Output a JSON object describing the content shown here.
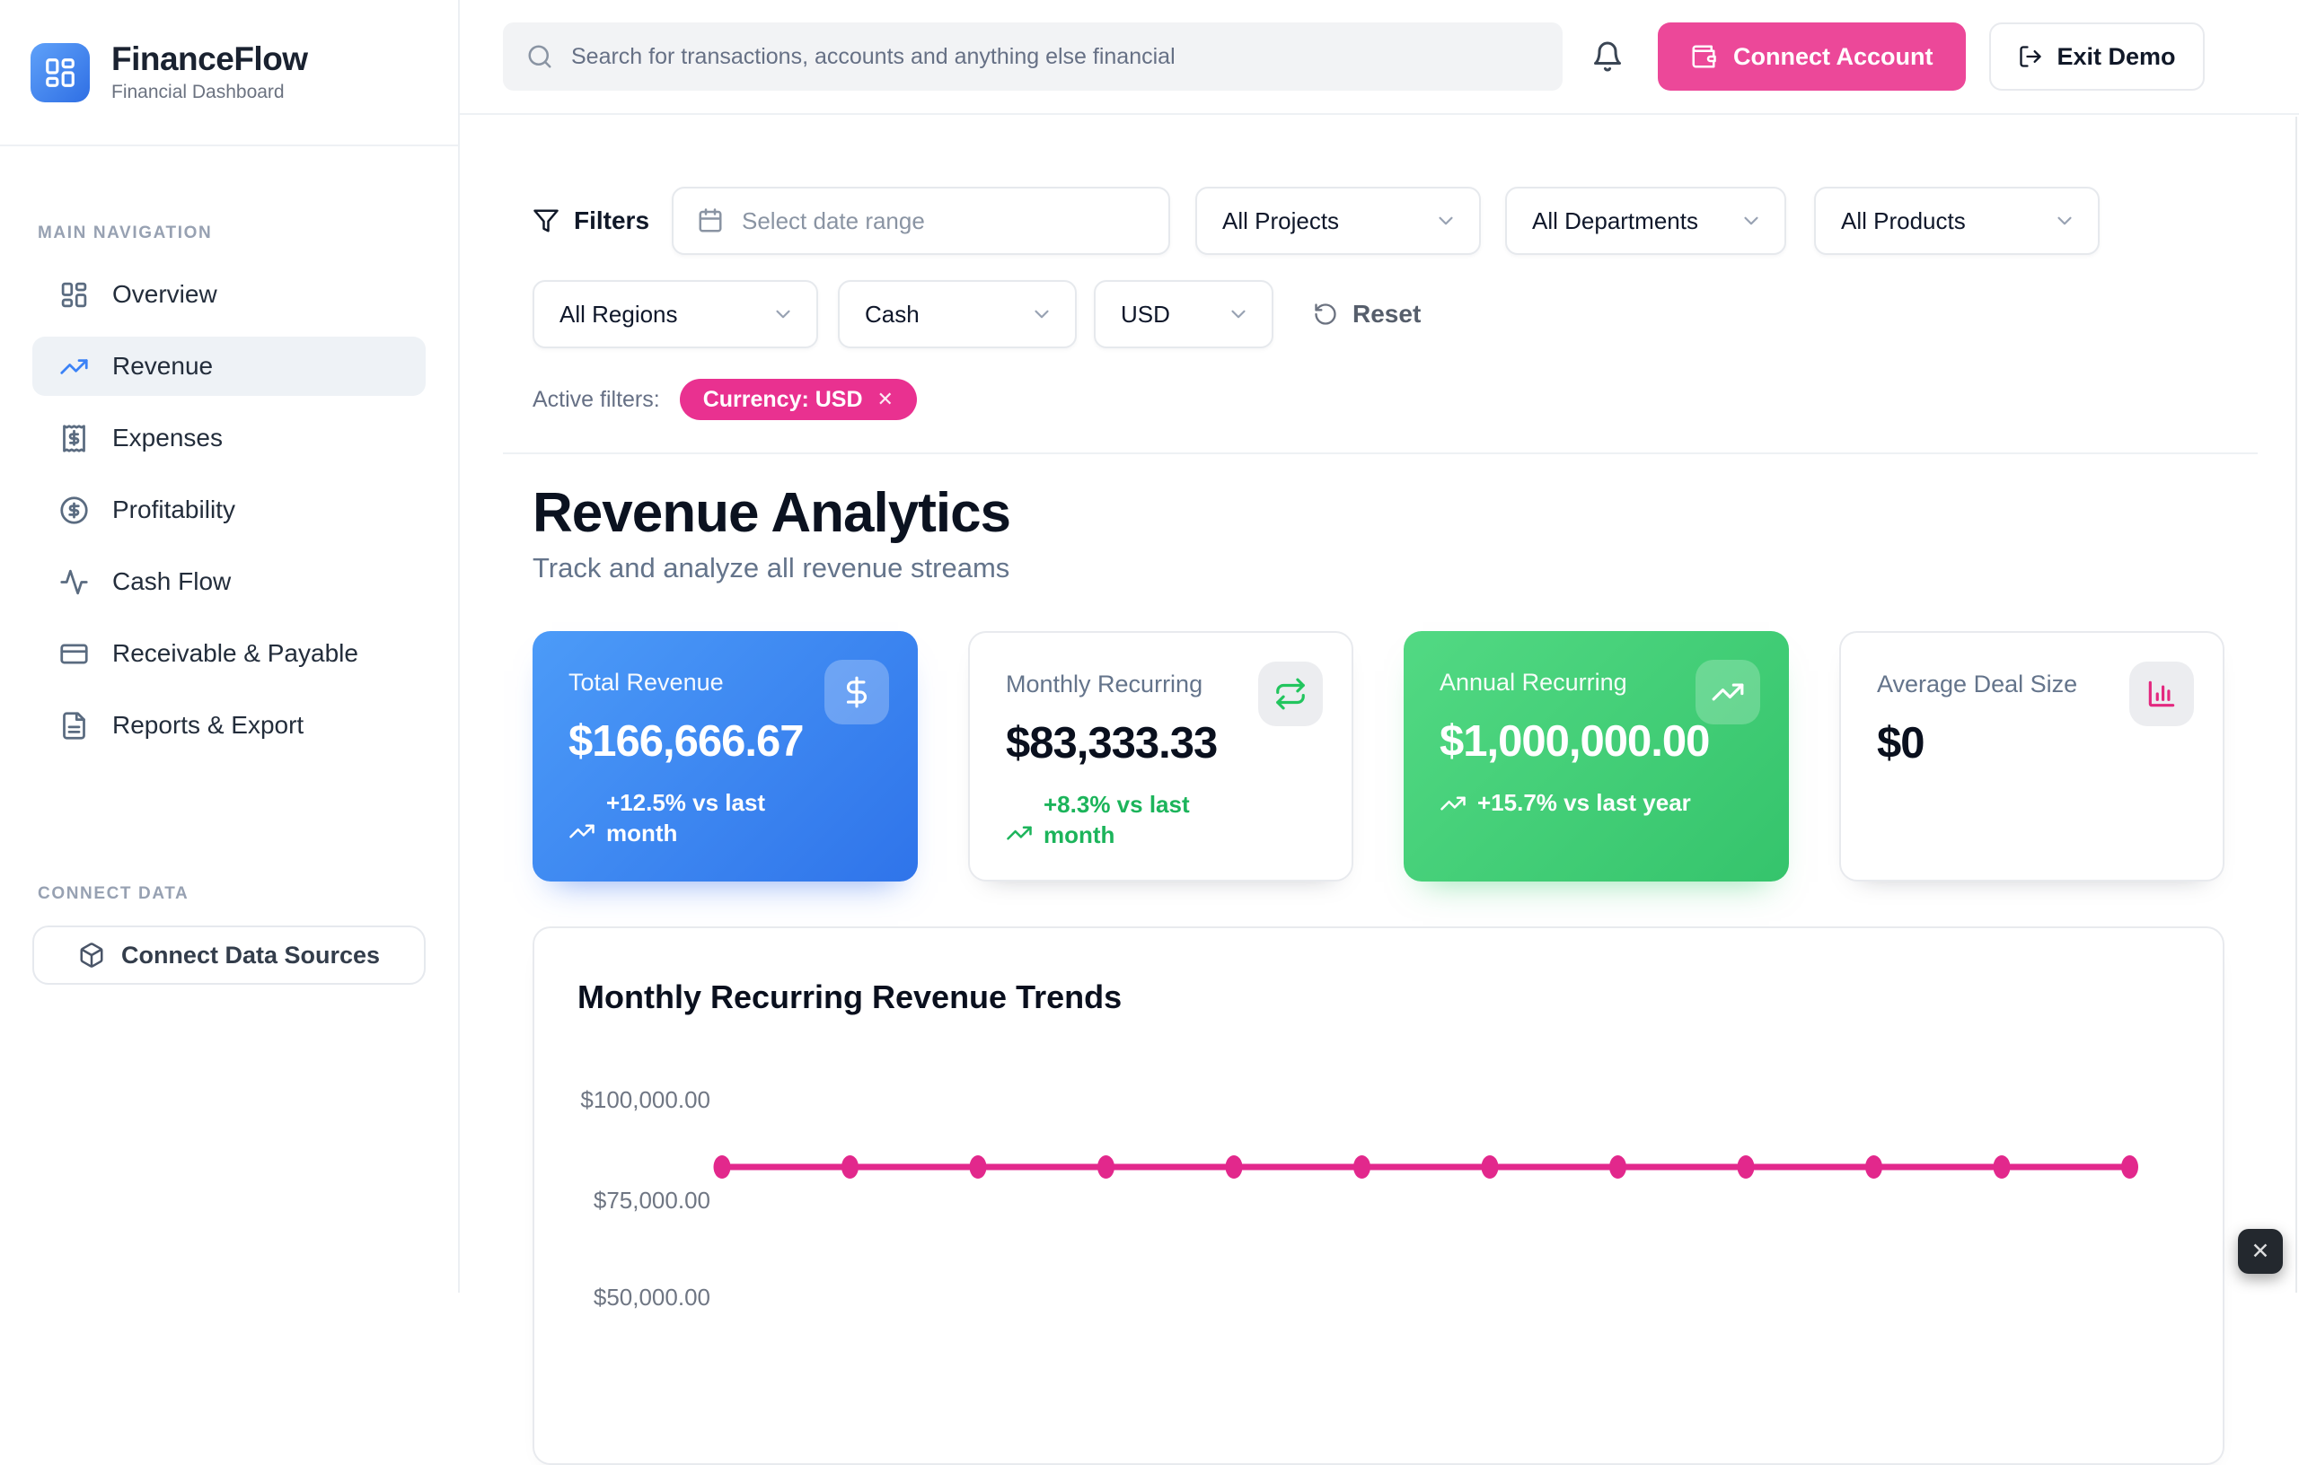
{
  "app": {
    "name": "FinanceFlow",
    "tagline": "Financial Dashboard"
  },
  "topbar": {
    "search_placeholder": "Search for transactions, accounts and anything else financial",
    "connect_account": "Connect Account",
    "exit_demo": "Exit Demo"
  },
  "sidebar": {
    "section_main": "MAIN NAVIGATION",
    "items": [
      {
        "label": "Overview",
        "icon": "dashboard-icon",
        "active": false
      },
      {
        "label": "Revenue",
        "icon": "trending-up-icon",
        "active": true
      },
      {
        "label": "Expenses",
        "icon": "receipt-icon",
        "active": false
      },
      {
        "label": "Profitability",
        "icon": "circle-dollar-icon",
        "active": false
      },
      {
        "label": "Cash Flow",
        "icon": "activity-icon",
        "active": false
      },
      {
        "label": "Receivable & Payable",
        "icon": "credit-card-icon",
        "active": false
      },
      {
        "label": "Reports & Export",
        "icon": "file-text-icon",
        "active": false
      }
    ],
    "section_connect": "CONNECT DATA",
    "connect_sources": "Connect Data Sources"
  },
  "filters": {
    "label": "Filters",
    "date_placeholder": "Select date range",
    "projects": "All Projects",
    "departments": "All Departments",
    "products": "All Products",
    "regions": "All Regions",
    "payment_type": "Cash",
    "currency": "USD",
    "reset_label": "Reset",
    "active_filters_label": "Active filters:",
    "active_chip": "Currency: USD",
    "active_chip_remove": "✕"
  },
  "page": {
    "title": "Revenue Analytics",
    "subtitle": "Track and analyze all revenue streams"
  },
  "kpis": [
    {
      "label": "Total Revenue",
      "value": "$166,666.67",
      "delta": "+12.5% vs last month",
      "icon": "dollar-icon",
      "style": "blue"
    },
    {
      "label": "Monthly Recurring",
      "value": "$83,333.33",
      "delta": "+8.3% vs last month",
      "icon": "repeat-icon",
      "style": "white"
    },
    {
      "label": "Annual Recurring",
      "value": "$1,000,000.00",
      "delta": "+15.7% vs last year",
      "icon": "trending-up-icon",
      "style": "green"
    },
    {
      "label": "Average Deal Size",
      "value": "$0",
      "delta": "",
      "icon": "bar-chart-icon",
      "style": "white"
    }
  ],
  "chart_data": {
    "type": "line",
    "title": "Monthly Recurring Revenue Trends",
    "series": [
      {
        "name": "Monthly Recurring Revenue",
        "values": [
          83333.33,
          83333.33,
          83333.33,
          83333.33,
          83333.33,
          83333.33,
          83333.33,
          83333.33,
          83333.33,
          83333.33,
          83333.33,
          83333.33
        ]
      }
    ],
    "x_points": 12,
    "x_tick_labels_visible": false,
    "y_ticks_visible": [
      "$100,000.00",
      "$75,000.00"
    ],
    "y_tick_clipped": "$50,000.00",
    "y_tick_values": [
      100000,
      75000
    ],
    "grid": false,
    "line_color": "#E2288C",
    "legend": "none"
  },
  "overlay": {
    "close": "✕"
  },
  "colors": {
    "accent_pink": "#EC4899",
    "chip_pink": "#E93190",
    "line_pink": "#E2288C",
    "brand_blue": "#3B82F6",
    "kpi_blue_gradient": [
      "#4C9BF8",
      "#2F74EA"
    ],
    "kpi_green_gradient": [
      "#52D983",
      "#35C46C"
    ],
    "positive_green": "#1CB45B",
    "border_gray": "#E8EAEE"
  }
}
